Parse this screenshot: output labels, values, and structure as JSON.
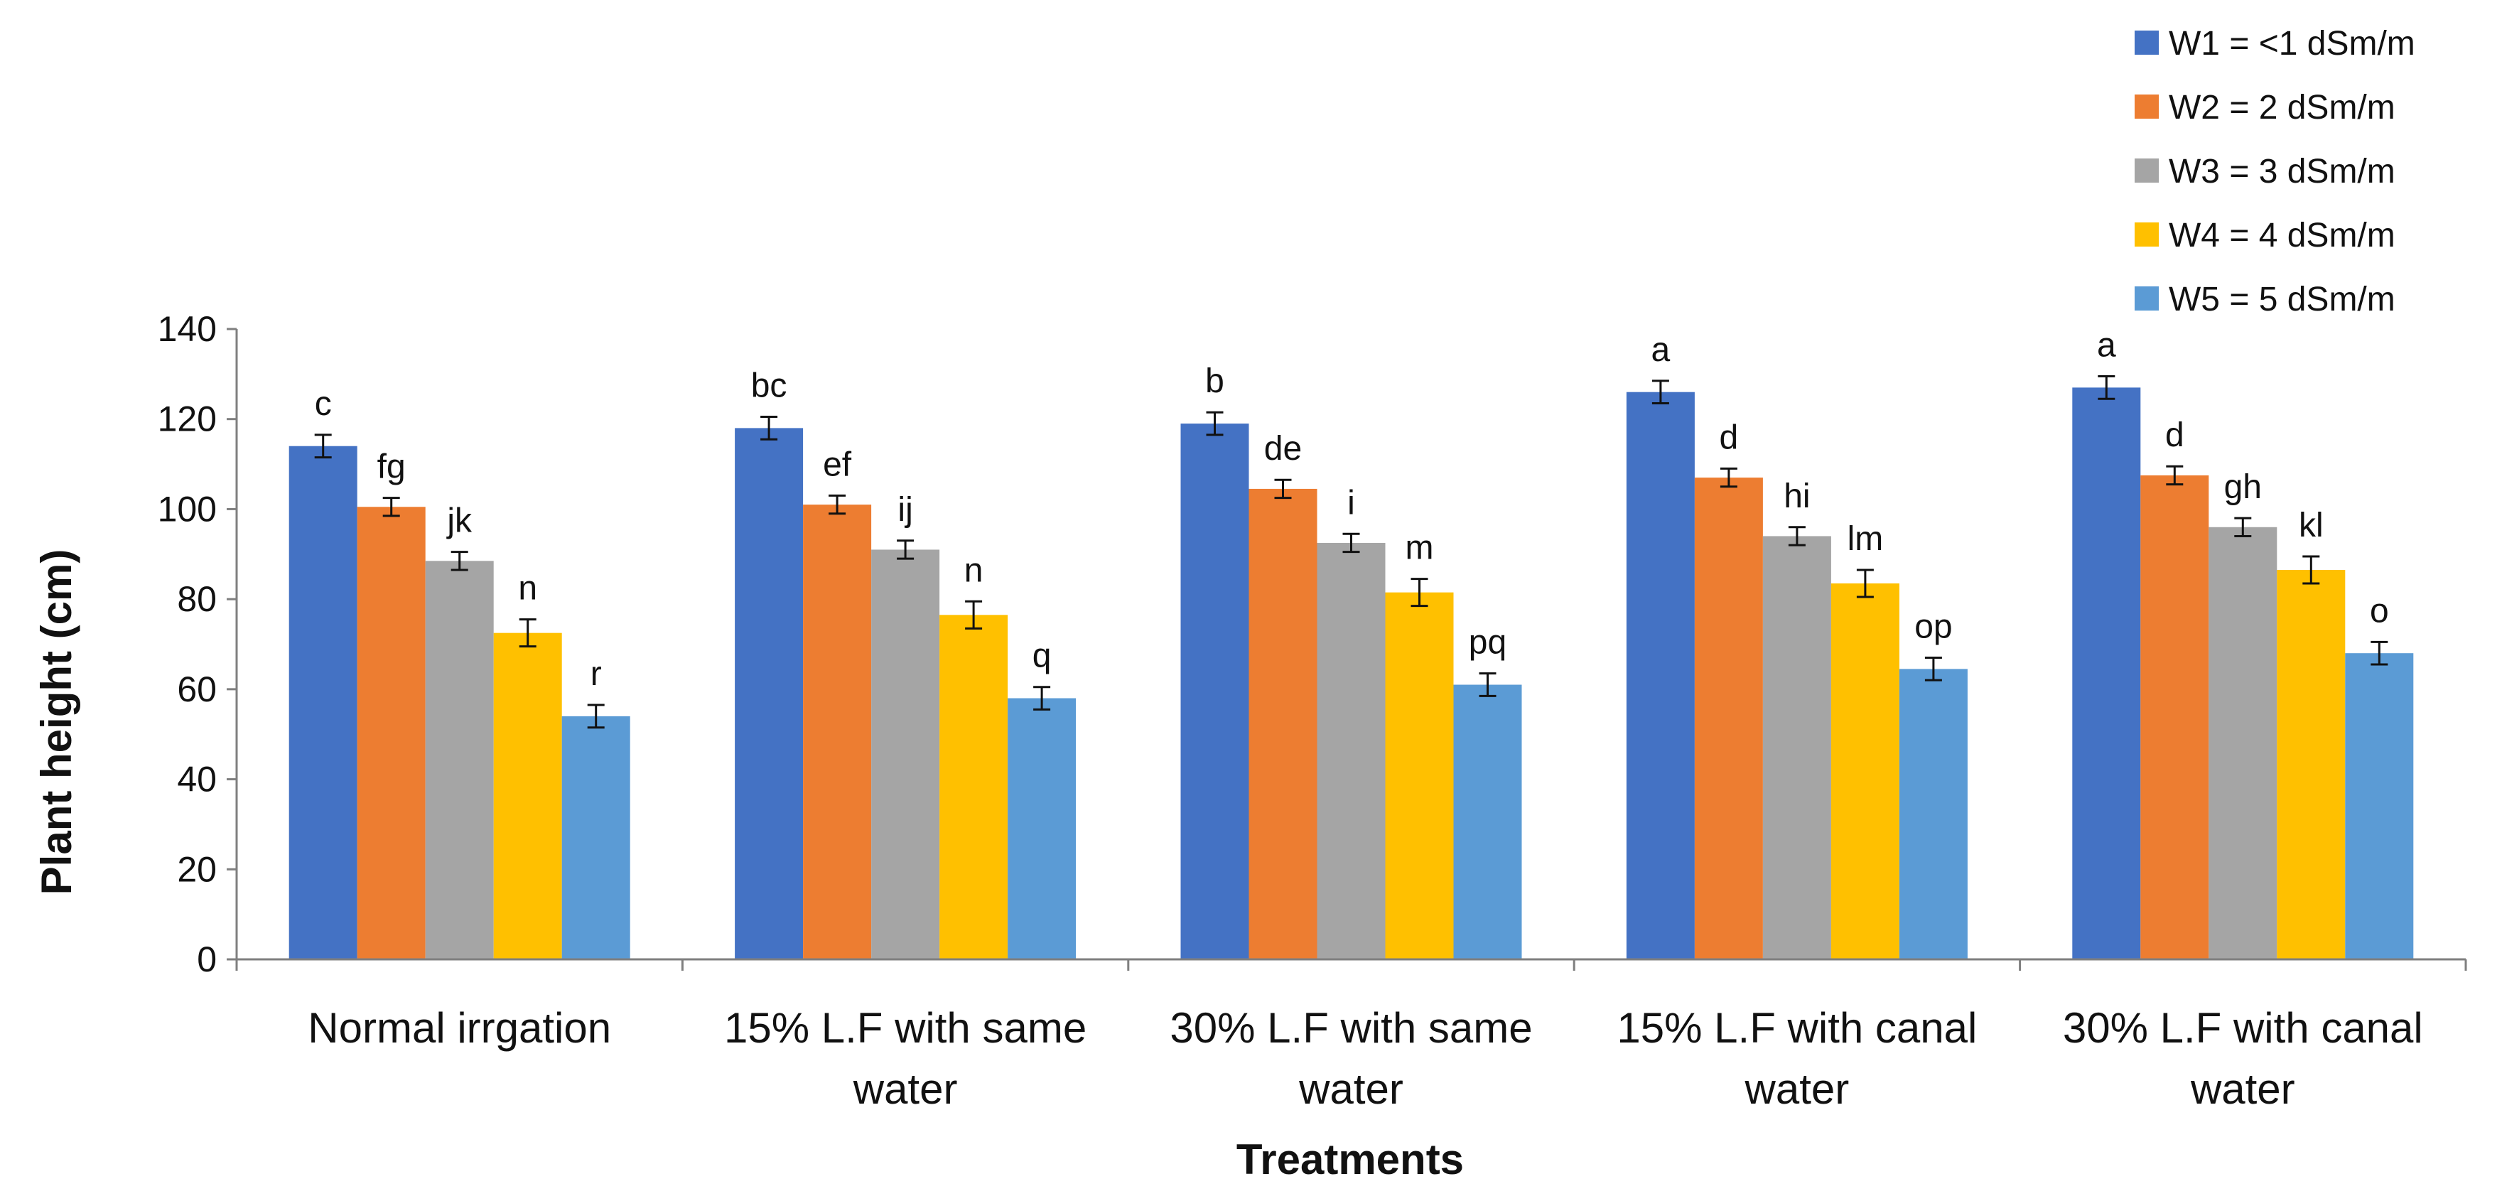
{
  "chart_data": {
    "type": "bar",
    "title": "",
    "xlabel": "Treatments",
    "ylabel": "Plant height (cm)",
    "ylim": [
      0,
      140
    ],
    "yticks": [
      "0",
      "20",
      "40",
      "60",
      "80",
      "100",
      "120",
      "140"
    ],
    "grid": false,
    "legend_position": "top-right",
    "categories": [
      [
        "Normal irrgation"
      ],
      [
        "15% L.F with same",
        "water"
      ],
      [
        "30% L.F with same",
        "water"
      ],
      [
        "15% L.F with canal",
        "water"
      ],
      [
        "30% L.F with canal",
        "water"
      ]
    ],
    "series": [
      {
        "name": "W1 = <1 dSm/m",
        "color": "#4472C4",
        "values": [
          114,
          118,
          119,
          126,
          127
        ],
        "errors": [
          2.5,
          2.5,
          2.5,
          2.5,
          2.5
        ],
        "labels": [
          "c",
          "bc",
          "b",
          "a",
          "a"
        ]
      },
      {
        "name": "W2 = 2 dSm/m",
        "color": "#ED7D31",
        "values": [
          100.5,
          101,
          104.5,
          107,
          107.5
        ],
        "errors": [
          2,
          2,
          2,
          2,
          2
        ],
        "labels": [
          "fg",
          "ef",
          "de",
          "d",
          "d"
        ]
      },
      {
        "name": "W3 = 3 dSm/m",
        "color": "#A5A5A5",
        "values": [
          88.5,
          91,
          92.5,
          94,
          96
        ],
        "errors": [
          2,
          2,
          2,
          2,
          2
        ],
        "labels": [
          "jk",
          "ij",
          "i",
          "hi",
          "gh"
        ]
      },
      {
        "name": "W4 = 4 dSm/m",
        "color": "#FFC000",
        "values": [
          72.5,
          76.5,
          81.5,
          83.5,
          86.5
        ],
        "errors": [
          3,
          3,
          3,
          3,
          3
        ],
        "labels": [
          "n",
          "n",
          "m",
          "lm",
          "kl"
        ]
      },
      {
        "name": "W5 = 5 dSm/m",
        "color": "#5B9BD5",
        "values": [
          54,
          58,
          61,
          64.5,
          68
        ],
        "errors": [
          2.5,
          2.5,
          2.5,
          2.5,
          2.5
        ],
        "labels": [
          "r",
          "q",
          "pq",
          "op",
          "o"
        ]
      }
    ]
  }
}
